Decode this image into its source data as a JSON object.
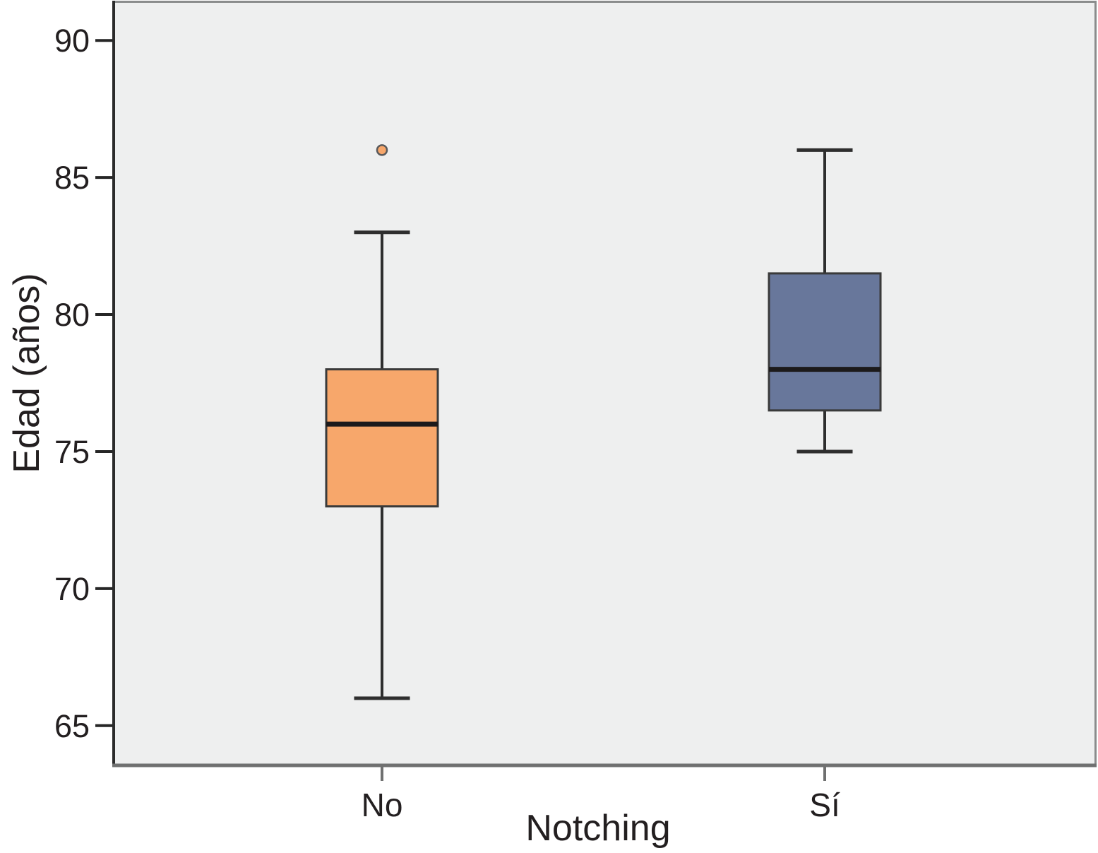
{
  "chart_data": {
    "type": "boxplot",
    "title": "",
    "xlabel": "Notching",
    "ylabel": "Edad (años)",
    "ylim": [
      63.55,
      91.45
    ],
    "yticks": [
      65,
      70,
      75,
      80,
      85,
      90
    ],
    "categories": [
      "No",
      "Sí"
    ],
    "series": [
      {
        "category": "No",
        "whisker_low": 66,
        "q1": 73,
        "median": 76,
        "q3": 78,
        "whisker_high": 83,
        "outliers": [
          86
        ],
        "fill": "#F7A76B"
      },
      {
        "category": "Sí",
        "whisker_low": 75,
        "q1": 76.5,
        "median": 78,
        "q3": 81.5,
        "whisker_high": 86,
        "outliers": [],
        "fill": "#68779B"
      }
    ],
    "grid": false,
    "legend": null,
    "colors": {
      "plot_background": "#EEEFEF",
      "figure_background": "#FFFFFF",
      "frame_top_right": "#8A8C8C",
      "frame_left": "#2B2B2B",
      "frame_bottom": "#6F7070",
      "box_stroke": "#3A3A3A",
      "median_line": "#1C1A1B",
      "whisker": "#2E2E2E",
      "outlier_stroke": "#58595B",
      "tick_color_y": "#262626",
      "tick_color_x": "#6F7070",
      "text": "#231F20"
    }
  }
}
